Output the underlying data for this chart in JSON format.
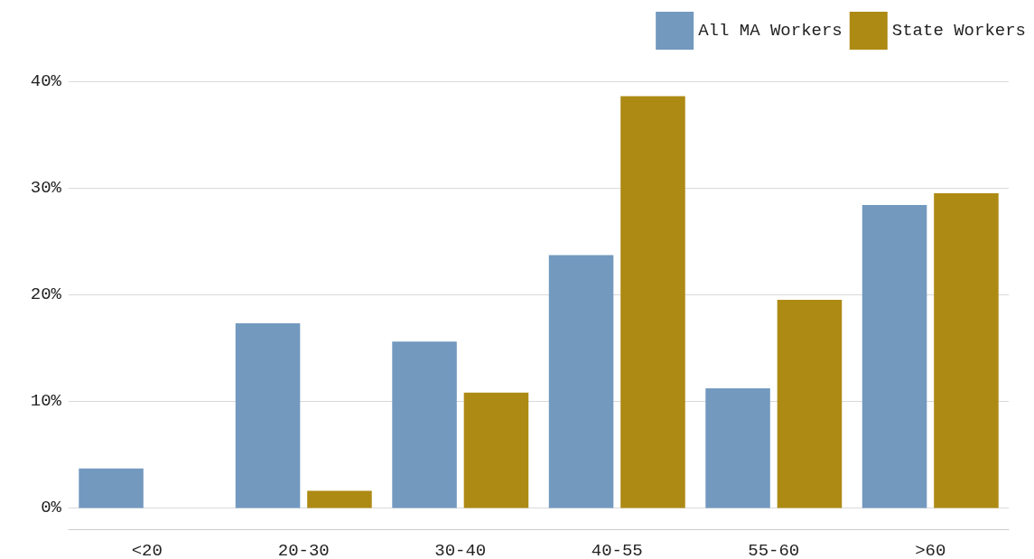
{
  "chart_data": {
    "type": "bar",
    "categories": [
      "<20",
      "20-30",
      "30-40",
      "40-55",
      "55-60",
      ">60"
    ],
    "series": [
      {
        "name": "All MA Workers",
        "color": "#7399bf",
        "values": [
          3.7,
          17.3,
          15.6,
          23.7,
          11.2,
          28.4
        ]
      },
      {
        "name": "State Workers",
        "color": "#ad8a14",
        "values": [
          0,
          1.6,
          10.8,
          38.6,
          19.5,
          29.5
        ]
      }
    ],
    "ylim": [
      -2,
      40
    ],
    "yticks": [
      {
        "value": 0,
        "label": "0%"
      },
      {
        "value": 10,
        "label": "10%"
      },
      {
        "value": 20,
        "label": "20%"
      },
      {
        "value": 30,
        "label": "30%"
      },
      {
        "value": 40,
        "label": "40%"
      }
    ],
    "grid": "y",
    "legend": "top right"
  }
}
